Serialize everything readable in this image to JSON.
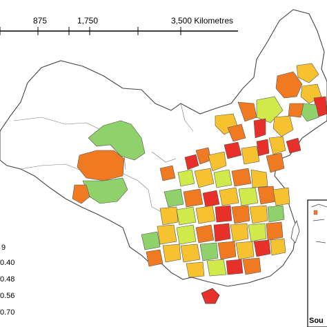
{
  "scale_bar": {
    "labels": [
      "875",
      "1,750",
      "3,500 Kilometres"
    ]
  },
  "legend": {
    "items": [
      {
        "label": "9",
        "color": "#8fd16b"
      },
      {
        "label": "0.40",
        "color": "#cfea4a"
      },
      {
        "label": "0.48",
        "color": "#f7c230"
      },
      {
        "label": "0.56",
        "color": "#f07a22"
      },
      {
        "label": "0.70",
        "color": "#e8302a"
      }
    ]
  },
  "inset": {
    "label": "Sou"
  },
  "palette": {
    "green": "#8fd16b",
    "lime": "#cfea4a",
    "yellow": "#f7c230",
    "orange": "#f07a22",
    "red": "#e8302a",
    "boundary": "#444444"
  }
}
